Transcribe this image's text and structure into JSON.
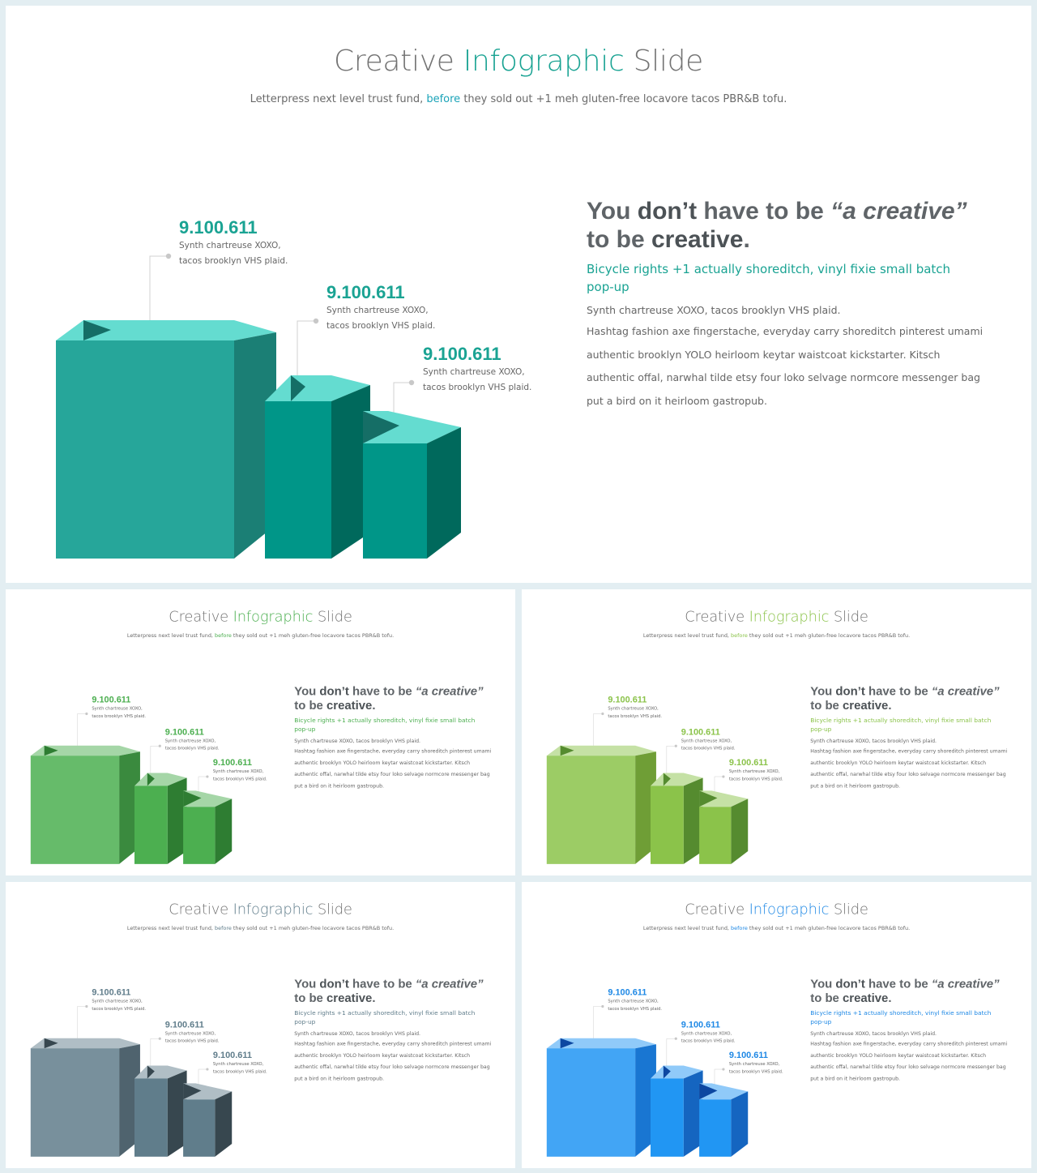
{
  "slide": {
    "title_pre": "Creative ",
    "title_accent": "Infographic",
    "title_post": " Slide",
    "subtitle_pre": "Letterpress next level trust fund, ",
    "subtitle_accent": "before",
    "subtitle_post": " they sold out +1 meh gluten-free locavore tacos PBR&B tofu.",
    "stats": [
      {
        "value": "9.100.611",
        "line1": "Synth chartreuse XOXO,",
        "line2": "tacos brooklyn VHS plaid."
      },
      {
        "value": "9.100.611",
        "line1": "Synth chartreuse XOXO,",
        "line2": "tacos brooklyn VHS plaid."
      },
      {
        "value": "9.100.611",
        "line1": "Synth chartreuse XOXO,",
        "line2": "tacos brooklyn VHS plaid."
      }
    ],
    "headline": {
      "p1": "You ",
      "b1": "don’t",
      "p2": " have to be ",
      "i1": "“a creative”",
      "p3": "to be ",
      "b2": "creative",
      "p4": "."
    },
    "sub_line1": "Bicycle rights +1 actually shoreditch, vinyl fixie small batch",
    "sub_line2": "pop-up",
    "lead": "Synth chartreuse XOXO, tacos brooklyn VHS plaid.",
    "body_lines": [
      "Hashtag fashion axe fingerstache, everyday carry shoreditch pinterest umami",
      "authentic brooklyn YOLO heirloom keytar waistcoat kickstarter. Kitsch",
      "authentic offal, narwhal tilde etsy four loko selvage normcore messenger bag",
      "put a bird on it heirloom gastropub."
    ]
  },
  "themes": [
    {
      "name": "teal",
      "accent": "#1aa393",
      "subtitle_accent": "#1aa3b8",
      "front": "#26a69a",
      "side": "#1b7f75",
      "top": "#64dcd0",
      "notch": "#156e66",
      "front2": "#009688",
      "side2": "#00695c"
    },
    {
      "name": "green",
      "accent": "#4caf50",
      "subtitle_accent": "#4caf50",
      "front": "#66bb6a",
      "side": "#3a8a3e",
      "top": "#a5d6a7",
      "notch": "#2e7d32",
      "front2": "#4caf50",
      "side2": "#2e7d32"
    },
    {
      "name": "light-green",
      "accent": "#8bc34a",
      "subtitle_accent": "#8bc34a",
      "front": "#9ccc65",
      "side": "#6f9e36",
      "top": "#c5e1a5",
      "notch": "#558b2f",
      "front2": "#8bc34a",
      "side2": "#558b2f"
    },
    {
      "name": "blue-grey",
      "accent": "#607d8b",
      "subtitle_accent": "#607d8b",
      "front": "#78909c",
      "side": "#4f636e",
      "top": "#b0bec5",
      "notch": "#37474f",
      "front2": "#607d8b",
      "side2": "#37474f"
    },
    {
      "name": "blue",
      "accent": "#1e88e5",
      "subtitle_accent": "#1e88e5",
      "front": "#42a5f5",
      "side": "#1976d2",
      "top": "#90caf9",
      "notch": "#0d47a1",
      "front2": "#2196f3",
      "side2": "#1565c0"
    }
  ]
}
